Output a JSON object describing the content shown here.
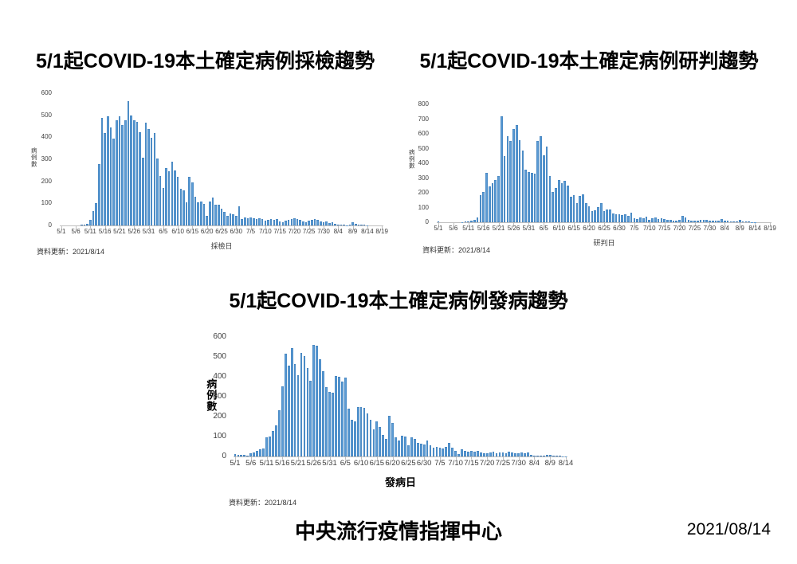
{
  "page": {
    "background": "#ffffff",
    "footer": {
      "organization": "中央流行疫情指揮中心",
      "date": "2021/08/14"
    }
  },
  "colors": {
    "bar_fill": "#5B9BD5",
    "bar_edge": "#3E7CB8",
    "axis_line": "#BFBFBF",
    "tick_text": "#404040",
    "title_text": "#000000"
  },
  "chart_data": [
    {
      "type": "bar",
      "title": "5/1起COVID-19本土確定病例採檢趨勢",
      "ylabel": "病例數",
      "xlabel": "採檢日",
      "update_note": "資料更新：2021/8/14",
      "ylim": [
        0,
        600
      ],
      "ytick_step": 100,
      "xtick_every": 5,
      "grid": false,
      "legend": false,
      "dates": [
        "5/1",
        "5/2",
        "5/3",
        "5/4",
        "5/5",
        "5/6",
        "5/7",
        "5/8",
        "5/9",
        "5/10",
        "5/11",
        "5/12",
        "5/13",
        "5/14",
        "5/15",
        "5/16",
        "5/17",
        "5/18",
        "5/19",
        "5/20",
        "5/21",
        "5/22",
        "5/23",
        "5/24",
        "5/25",
        "5/26",
        "5/27",
        "5/28",
        "5/29",
        "5/30",
        "5/31",
        "6/1",
        "6/2",
        "6/3",
        "6/4",
        "6/5",
        "6/6",
        "6/7",
        "6/8",
        "6/9",
        "6/10",
        "6/11",
        "6/12",
        "6/13",
        "6/14",
        "6/15",
        "6/16",
        "6/17",
        "6/18",
        "6/19",
        "6/20",
        "6/21",
        "6/22",
        "6/23",
        "6/24",
        "6/25",
        "6/26",
        "6/27",
        "6/28",
        "6/29",
        "6/30",
        "7/1",
        "7/2",
        "7/3",
        "7/4",
        "7/5",
        "7/6",
        "7/7",
        "7/8",
        "7/9",
        "7/10",
        "7/11",
        "7/12",
        "7/13",
        "7/14",
        "7/15",
        "7/16",
        "7/17",
        "7/18",
        "7/19",
        "7/20",
        "7/21",
        "7/22",
        "7/23",
        "7/24",
        "7/25",
        "7/26",
        "7/27",
        "7/28",
        "7/29",
        "7/30",
        "7/31",
        "8/1",
        "8/2",
        "8/3",
        "8/4",
        "8/5",
        "8/6",
        "8/7",
        "8/8",
        "8/9",
        "8/10",
        "8/11",
        "8/12",
        "8/13",
        "8/14",
        "8/15",
        "8/16",
        "8/17",
        "8/18",
        "8/19"
      ],
      "values": [
        0,
        0,
        0,
        0,
        0,
        0,
        0,
        2,
        3,
        8,
        25,
        65,
        100,
        280,
        487,
        420,
        497,
        445,
        395,
        477,
        495,
        457,
        477,
        563,
        500,
        477,
        469,
        424,
        306,
        466,
        436,
        397,
        418,
        305,
        225,
        170,
        261,
        245,
        290,
        251,
        219,
        166,
        159,
        104,
        219,
        194,
        129,
        106,
        107,
        98,
        45,
        107,
        127,
        95,
        94,
        76,
        60,
        45,
        56,
        51,
        44,
        88,
        30,
        35,
        33,
        35,
        34,
        30,
        31,
        29,
        20,
        24,
        30,
        26,
        29,
        19,
        15,
        21,
        25,
        29,
        34,
        30,
        25,
        19,
        14,
        20,
        24,
        29,
        24,
        19,
        14,
        19,
        10,
        14,
        9,
        5,
        3,
        2,
        1,
        5,
        14,
        6,
        2,
        2,
        3,
        1,
        0,
        0,
        0,
        0,
        0
      ]
    },
    {
      "type": "bar",
      "title": "5/1起COVID-19本土確定病例研判趨勢",
      "ylabel": "病例數",
      "xlabel": "研判日",
      "update_note": "資料更新：2021/8/14",
      "ylim": [
        0,
        800
      ],
      "ytick_step": 100,
      "xtick_every": 5,
      "grid": false,
      "legend": false,
      "dates": [
        "5/1",
        "5/2",
        "5/3",
        "5/4",
        "5/5",
        "5/6",
        "5/7",
        "5/8",
        "5/9",
        "5/10",
        "5/11",
        "5/12",
        "5/13",
        "5/14",
        "5/15",
        "5/16",
        "5/17",
        "5/18",
        "5/19",
        "5/20",
        "5/21",
        "5/22",
        "5/23",
        "5/24",
        "5/25",
        "5/26",
        "5/27",
        "5/28",
        "5/29",
        "5/30",
        "5/31",
        "6/1",
        "6/2",
        "6/3",
        "6/4",
        "6/5",
        "6/6",
        "6/7",
        "6/8",
        "6/9",
        "6/10",
        "6/11",
        "6/12",
        "6/13",
        "6/14",
        "6/15",
        "6/16",
        "6/17",
        "6/18",
        "6/19",
        "6/20",
        "6/21",
        "6/22",
        "6/23",
        "6/24",
        "6/25",
        "6/26",
        "6/27",
        "6/28",
        "6/29",
        "6/30",
        "7/1",
        "7/2",
        "7/3",
        "7/4",
        "7/5",
        "7/6",
        "7/7",
        "7/8",
        "7/9",
        "7/10",
        "7/11",
        "7/12",
        "7/13",
        "7/14",
        "7/15",
        "7/16",
        "7/17",
        "7/18",
        "7/19",
        "7/20",
        "7/21",
        "7/22",
        "7/23",
        "7/24",
        "7/25",
        "7/26",
        "7/27",
        "7/28",
        "7/29",
        "7/30",
        "7/31",
        "8/1",
        "8/2",
        "8/3",
        "8/4",
        "8/5",
        "8/6",
        "8/7",
        "8/8",
        "8/9",
        "8/10",
        "8/11",
        "8/12",
        "8/13",
        "8/14",
        "8/15",
        "8/16",
        "8/17",
        "8/18",
        "8/19"
      ],
      "values": [
        4,
        0,
        0,
        0,
        0,
        0,
        0,
        0,
        2,
        5,
        8,
        12,
        15,
        30,
        183,
        208,
        333,
        242,
        267,
        286,
        312,
        721,
        450,
        586,
        549,
        635,
        662,
        557,
        487,
        355,
        343,
        337,
        328,
        549,
        583,
        455,
        511,
        316,
        205,
        230,
        288,
        266,
        283,
        250,
        175,
        186,
        130,
        178,
        187,
        128,
        107,
        75,
        79,
        104,
        129,
        76,
        88,
        89,
        60,
        54,
        55,
        47,
        52,
        45,
        66,
        28,
        23,
        33,
        25,
        40,
        18,
        28,
        31,
        23,
        29,
        24,
        15,
        18,
        13,
        9,
        16,
        44,
        33,
        19,
        13,
        10,
        11,
        15,
        14,
        18,
        12,
        10,
        9,
        13,
        21,
        10,
        9,
        5,
        5,
        4,
        14,
        6,
        4,
        3,
        2,
        1,
        0,
        0,
        0,
        0,
        0
      ]
    },
    {
      "type": "bar",
      "title": "5/1起COVID-19本土確定病例發病趨勢",
      "ylabel": "病例數",
      "xlabel": "發病日",
      "update_note": "資料更新：2021/8/14",
      "ylim": [
        0,
        600
      ],
      "ytick_step": 100,
      "xtick_every": 5,
      "grid": false,
      "legend": false,
      "dates": [
        "5/1",
        "5/2",
        "5/3",
        "5/4",
        "5/5",
        "5/6",
        "5/7",
        "5/8",
        "5/9",
        "5/10",
        "5/11",
        "5/12",
        "5/13",
        "5/14",
        "5/15",
        "5/16",
        "5/17",
        "5/18",
        "5/19",
        "5/20",
        "5/21",
        "5/22",
        "5/23",
        "5/24",
        "5/25",
        "5/26",
        "5/27",
        "5/28",
        "5/29",
        "5/30",
        "5/31",
        "6/1",
        "6/2",
        "6/3",
        "6/4",
        "6/5",
        "6/6",
        "6/7",
        "6/8",
        "6/9",
        "6/10",
        "6/11",
        "6/12",
        "6/13",
        "6/14",
        "6/15",
        "6/16",
        "6/17",
        "6/18",
        "6/19",
        "6/20",
        "6/21",
        "6/22",
        "6/23",
        "6/24",
        "6/25",
        "6/26",
        "6/27",
        "6/28",
        "6/29",
        "6/30",
        "7/1",
        "7/2",
        "7/3",
        "7/4",
        "7/5",
        "7/6",
        "7/7",
        "7/8",
        "7/9",
        "7/10",
        "7/11",
        "7/12",
        "7/13",
        "7/14",
        "7/15",
        "7/16",
        "7/17",
        "7/18",
        "7/19",
        "7/20",
        "7/21",
        "7/22",
        "7/23",
        "7/24",
        "7/25",
        "7/26",
        "7/27",
        "7/28",
        "7/29",
        "7/30",
        "7/31",
        "8/1",
        "8/2",
        "8/3",
        "8/4",
        "8/5",
        "8/6",
        "8/7",
        "8/8",
        "8/9",
        "8/10",
        "8/11",
        "8/12",
        "8/13",
        "8/14"
      ],
      "values": [
        12,
        8,
        10,
        8,
        4,
        18,
        22,
        28,
        35,
        42,
        95,
        100,
        128,
        158,
        232,
        352,
        515,
        458,
        545,
        465,
        410,
        520,
        505,
        445,
        380,
        560,
        555,
        490,
        430,
        350,
        325,
        320,
        405,
        400,
        375,
        395,
        240,
        185,
        175,
        250,
        250,
        245,
        215,
        185,
        135,
        175,
        150,
        110,
        90,
        205,
        170,
        95,
        80,
        105,
        100,
        55,
        95,
        90,
        70,
        65,
        60,
        80,
        55,
        45,
        50,
        45,
        40,
        50,
        70,
        45,
        30,
        12,
        35,
        30,
        25,
        30,
        25,
        30,
        20,
        15,
        15,
        20,
        25,
        15,
        20,
        20,
        15,
        25,
        20,
        15,
        15,
        20,
        15,
        20,
        10,
        6,
        4,
        3,
        3,
        10,
        8,
        5,
        3,
        3,
        2,
        2
      ]
    }
  ]
}
